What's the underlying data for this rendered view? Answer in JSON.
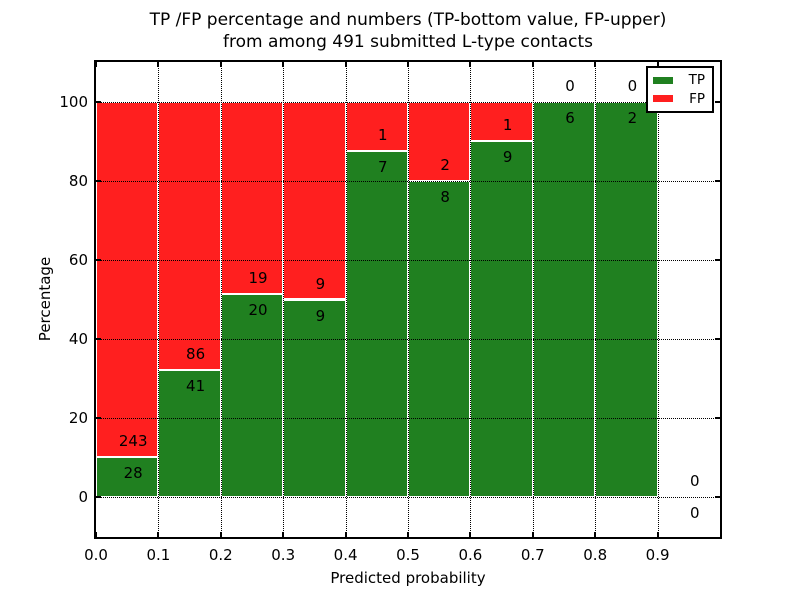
{
  "figure": {
    "title_line1": "TP /FP percentage and numbers (TP-bottom value, FP-upper)",
    "title_line2": "from among 491 submitted L-type contacts",
    "background": "#ffffff"
  },
  "chart_data": {
    "type": "bar",
    "stacked": true,
    "title": "TP /FP percentage and numbers (TP-bottom value, FP-upper)\nfrom among 491 submitted L-type contacts",
    "xlabel": "Predicted probability",
    "ylabel": "Percentage",
    "xlim": [
      0.0,
      1.0
    ],
    "ylim": [
      -10,
      110
    ],
    "grid": true,
    "xticks": [
      "0.0",
      "0.1",
      "0.2",
      "0.3",
      "0.4",
      "0.5",
      "0.6",
      "0.7",
      "0.8",
      "0.9"
    ],
    "yticks": [
      "0",
      "20",
      "40",
      "60",
      "80",
      "100"
    ],
    "total_submitted": 491,
    "bar_colors": {
      "tp": "#208020",
      "fp": "#ff1f1f"
    },
    "bar_edge_color": "#ffffff",
    "legend": {
      "position": "upper right",
      "entries": [
        {
          "label": "TP",
          "color": "#208020"
        },
        {
          "label": "FP",
          "color": "#ff1f1f"
        }
      ]
    },
    "bins": [
      {
        "range": [
          0.0,
          0.1
        ],
        "tp": 28,
        "fp": 243
      },
      {
        "range": [
          0.1,
          0.2
        ],
        "tp": 41,
        "fp": 86
      },
      {
        "range": [
          0.2,
          0.3
        ],
        "tp": 20,
        "fp": 19
      },
      {
        "range": [
          0.3,
          0.4
        ],
        "tp": 9,
        "fp": 9
      },
      {
        "range": [
          0.4,
          0.5
        ],
        "tp": 7,
        "fp": 1
      },
      {
        "range": [
          0.5,
          0.6
        ],
        "tp": 8,
        "fp": 2
      },
      {
        "range": [
          0.6,
          0.7
        ],
        "tp": 9,
        "fp": 1
      },
      {
        "range": [
          0.7,
          0.8
        ],
        "tp": 6,
        "fp": 0
      },
      {
        "range": [
          0.8,
          0.9
        ],
        "tp": 2,
        "fp": 0
      },
      {
        "range": [
          0.9,
          1.0
        ],
        "tp": 0,
        "fp": 0
      }
    ]
  }
}
